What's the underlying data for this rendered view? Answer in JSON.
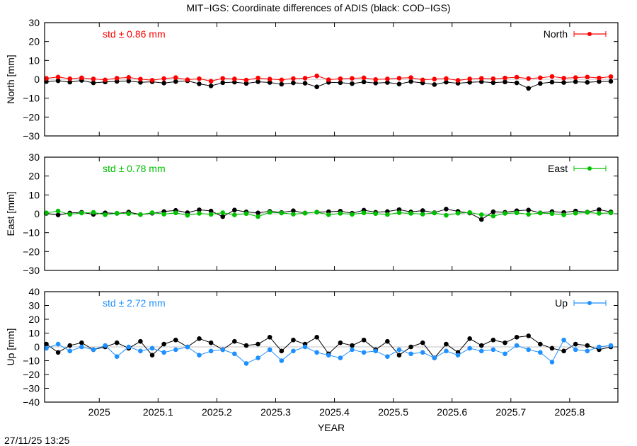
{
  "title": "MIT−IGS: Coordinate differences of ADIS (black: COD−IGS)",
  "timestamp": "27/11/25 13:25",
  "chart_data": [
    {
      "type": "line",
      "ylabel": "North [mm]",
      "ylim": [
        -30,
        30
      ],
      "yticks": [
        -30,
        -20,
        -10,
        0,
        10,
        20,
        30
      ],
      "xlim": [
        2024.907,
        2025.882
      ],
      "xticks": [
        "2025",
        "2025.1",
        "2025.2",
        "2025.3",
        "2025.4",
        "2025.5",
        "2025.6",
        "2025.7",
        "2025.8"
      ],
      "std_label": "std ± 0.86 mm",
      "legend_position": "top-right",
      "x": [
        2024.91,
        2024.93,
        2024.95,
        2024.97,
        2024.99,
        2025.01,
        2025.03,
        2025.05,
        2025.07,
        2025.09,
        2025.11,
        2025.13,
        2025.15,
        2025.17,
        2025.19,
        2025.21,
        2025.23,
        2025.25,
        2025.27,
        2025.29,
        2025.31,
        2025.33,
        2025.35,
        2025.37,
        2025.39,
        2025.41,
        2025.43,
        2025.45,
        2025.47,
        2025.49,
        2025.51,
        2025.53,
        2025.55,
        2025.57,
        2025.59,
        2025.61,
        2025.63,
        2025.65,
        2025.67,
        2025.69,
        2025.71,
        2025.73,
        2025.75,
        2025.77,
        2025.79,
        2025.81,
        2025.83,
        2025.85,
        2025.87
      ],
      "series": [
        {
          "color": "#000000",
          "values": [
            -1.2,
            -0.8,
            -1.5,
            -0.6,
            -1.9,
            -1.4,
            -1.1,
            -0.9,
            -1.6,
            -1.3,
            -2.0,
            -1.2,
            -0.8,
            -2.4,
            -3.5,
            -1.8,
            -1.5,
            -2.2,
            -1.3,
            -1.7,
            -2.6,
            -1.9,
            -2.1,
            -4.0,
            -1.6,
            -1.8,
            -2.3,
            -1.4,
            -2.0,
            -1.7,
            -2.5,
            -1.2,
            -1.9,
            -2.8,
            -1.5,
            -2.1,
            -1.6,
            -1.3,
            -1.8,
            -1.4,
            -1.9,
            -4.8,
            -2.2,
            -1.5,
            -1.7,
            -1.3,
            -1.6,
            -1.2,
            -1.1
          ]
        },
        {
          "name": "North",
          "color": "#ff0000",
          "values": [
            0.5,
            1.2,
            0.3,
            0.8,
            0.2,
            -0.3,
            0.6,
            1.0,
            0.1,
            -0.5,
            0.4,
            0.9,
            -0.2,
            0.3,
            -1.0,
            0.5,
            0.2,
            -0.4,
            0.7,
            0.1,
            -0.3,
            0.4,
            0.6,
            1.8,
            -0.2,
            0.3,
            0.5,
            0.8,
            -0.1,
            0.2,
            0.6,
            0.9,
            -0.3,
            0.1,
            0.4,
            -0.6,
            0.2,
            0.5,
            0.3,
            0.7,
            1.1,
            0.4,
            0.8,
            1.5,
            0.6,
            0.9,
            1.2,
            0.7,
            1.4
          ]
        }
      ]
    },
    {
      "type": "line",
      "ylabel": "East [mm]",
      "ylim": [
        -30,
        30
      ],
      "yticks": [
        -30,
        -20,
        -10,
        0,
        10,
        20,
        30
      ],
      "xlim": [
        2024.907,
        2025.882
      ],
      "xticks": [
        "2025",
        "2025.1",
        "2025.2",
        "2025.3",
        "2025.4",
        "2025.5",
        "2025.6",
        "2025.7",
        "2025.8"
      ],
      "std_label": "std ± 0.78 mm",
      "legend_position": "top-right",
      "x": [
        2024.91,
        2024.93,
        2024.95,
        2024.97,
        2024.99,
        2025.01,
        2025.03,
        2025.05,
        2025.07,
        2025.09,
        2025.11,
        2025.13,
        2025.15,
        2025.17,
        2025.19,
        2025.21,
        2025.23,
        2025.25,
        2025.27,
        2025.29,
        2025.31,
        2025.33,
        2025.35,
        2025.37,
        2025.39,
        2025.41,
        2025.43,
        2025.45,
        2025.47,
        2025.49,
        2025.51,
        2025.53,
        2025.55,
        2025.57,
        2025.59,
        2025.61,
        2025.63,
        2025.65,
        2025.67,
        2025.69,
        2025.71,
        2025.73,
        2025.75,
        2025.77,
        2025.79,
        2025.81,
        2025.83,
        2025.85,
        2025.87
      ],
      "series": [
        {
          "color": "#000000",
          "values": [
            0.2,
            -0.6,
            0.4,
            0.8,
            -0.3,
            0.5,
            0.2,
            0.9,
            -0.4,
            0.3,
            1.2,
            1.8,
            0.6,
            2.1,
            1.5,
            -1.5,
            2.0,
            1.0,
            0.5,
            1.3,
            0.7,
            1.6,
            0.4,
            0.9,
            1.1,
            1.4,
            0.3,
            1.9,
            0.8,
            1.2,
            2.2,
            1.0,
            1.7,
            0.6,
            2.5,
            1.3,
            0.4,
            -3.0,
            1.1,
            0.8,
            1.6,
            2.0,
            0.5,
            1.2,
            0.7,
            1.5,
            0.9,
            2.2,
            1.0
          ]
        },
        {
          "name": "East",
          "color": "#00c000",
          "values": [
            0.5,
            1.5,
            -0.3,
            0.4,
            0.8,
            -0.5,
            0.3,
            0.1,
            -0.4,
            0.6,
            -0.2,
            0.5,
            -0.8,
            0.2,
            -0.3,
            0.6,
            -0.6,
            0.1,
            -1.5,
            0.8,
            0.4,
            -0.2,
            0.3,
            0.9,
            -0.5,
            0.2,
            -0.3,
            0.5,
            0.1,
            -0.4,
            0.6,
            0.2,
            -0.2,
            0.4,
            -0.8,
            0.3,
            0.7,
            -0.5,
            -1.2,
            0.2,
            0.5,
            -0.3,
            0.4,
            0.1,
            -0.6,
            0.3,
            0.8,
            0.2,
            0.5
          ]
        }
      ]
    },
    {
      "type": "line",
      "ylabel": "Up [mm]",
      "xlabel": "YEAR",
      "ylim": [
        -40,
        40
      ],
      "yticks": [
        -40,
        -30,
        -20,
        -10,
        0,
        10,
        20,
        30,
        40
      ],
      "xlim": [
        2024.907,
        2025.882
      ],
      "xticks": [
        "2025",
        "2025.1",
        "2025.2",
        "2025.3",
        "2025.4",
        "2025.5",
        "2025.6",
        "2025.7",
        "2025.8"
      ],
      "std_label": "std ± 2.72 mm",
      "legend_position": "top-right",
      "x": [
        2024.91,
        2024.93,
        2024.95,
        2024.97,
        2024.99,
        2025.01,
        2025.03,
        2025.05,
        2025.07,
        2025.09,
        2025.11,
        2025.13,
        2025.15,
        2025.17,
        2025.19,
        2025.21,
        2025.23,
        2025.25,
        2025.27,
        2025.29,
        2025.31,
        2025.33,
        2025.35,
        2025.37,
        2025.39,
        2025.41,
        2025.43,
        2025.45,
        2025.47,
        2025.49,
        2025.51,
        2025.53,
        2025.55,
        2025.57,
        2025.59,
        2025.61,
        2025.63,
        2025.65,
        2025.67,
        2025.69,
        2025.71,
        2025.73,
        2025.75,
        2025.77,
        2025.79,
        2025.81,
        2025.83,
        2025.85,
        2025.87
      ],
      "series": [
        {
          "color": "#000000",
          "values": [
            2,
            -4,
            1,
            3,
            -2,
            0,
            3,
            -1,
            4,
            -6,
            2,
            5,
            0,
            6,
            3,
            -2,
            4,
            1,
            2,
            7,
            -3,
            5,
            2,
            7,
            -5,
            3,
            1,
            5,
            -2,
            4,
            -6,
            0,
            3,
            -8,
            2,
            -4,
            6,
            1,
            5,
            3,
            7,
            8,
            2,
            -1,
            -3,
            2,
            1,
            -2,
            0
          ]
        },
        {
          "name": "Up",
          "color": "#1e90ff",
          "values": [
            -1,
            2,
            -3,
            0,
            -2,
            1,
            -7,
            0,
            -3,
            -1,
            -4,
            -2,
            0,
            -6,
            -3,
            -2,
            -5,
            -12,
            -8,
            -2,
            -10,
            -3,
            0,
            -4,
            -6,
            -8,
            -2,
            -4,
            -3,
            -7,
            -2,
            -5,
            -4,
            -8,
            -3,
            -6,
            -1,
            -3,
            -2,
            -5,
            1,
            -2,
            -4,
            -11,
            5,
            -2,
            -3,
            0,
            1
          ]
        }
      ]
    }
  ]
}
